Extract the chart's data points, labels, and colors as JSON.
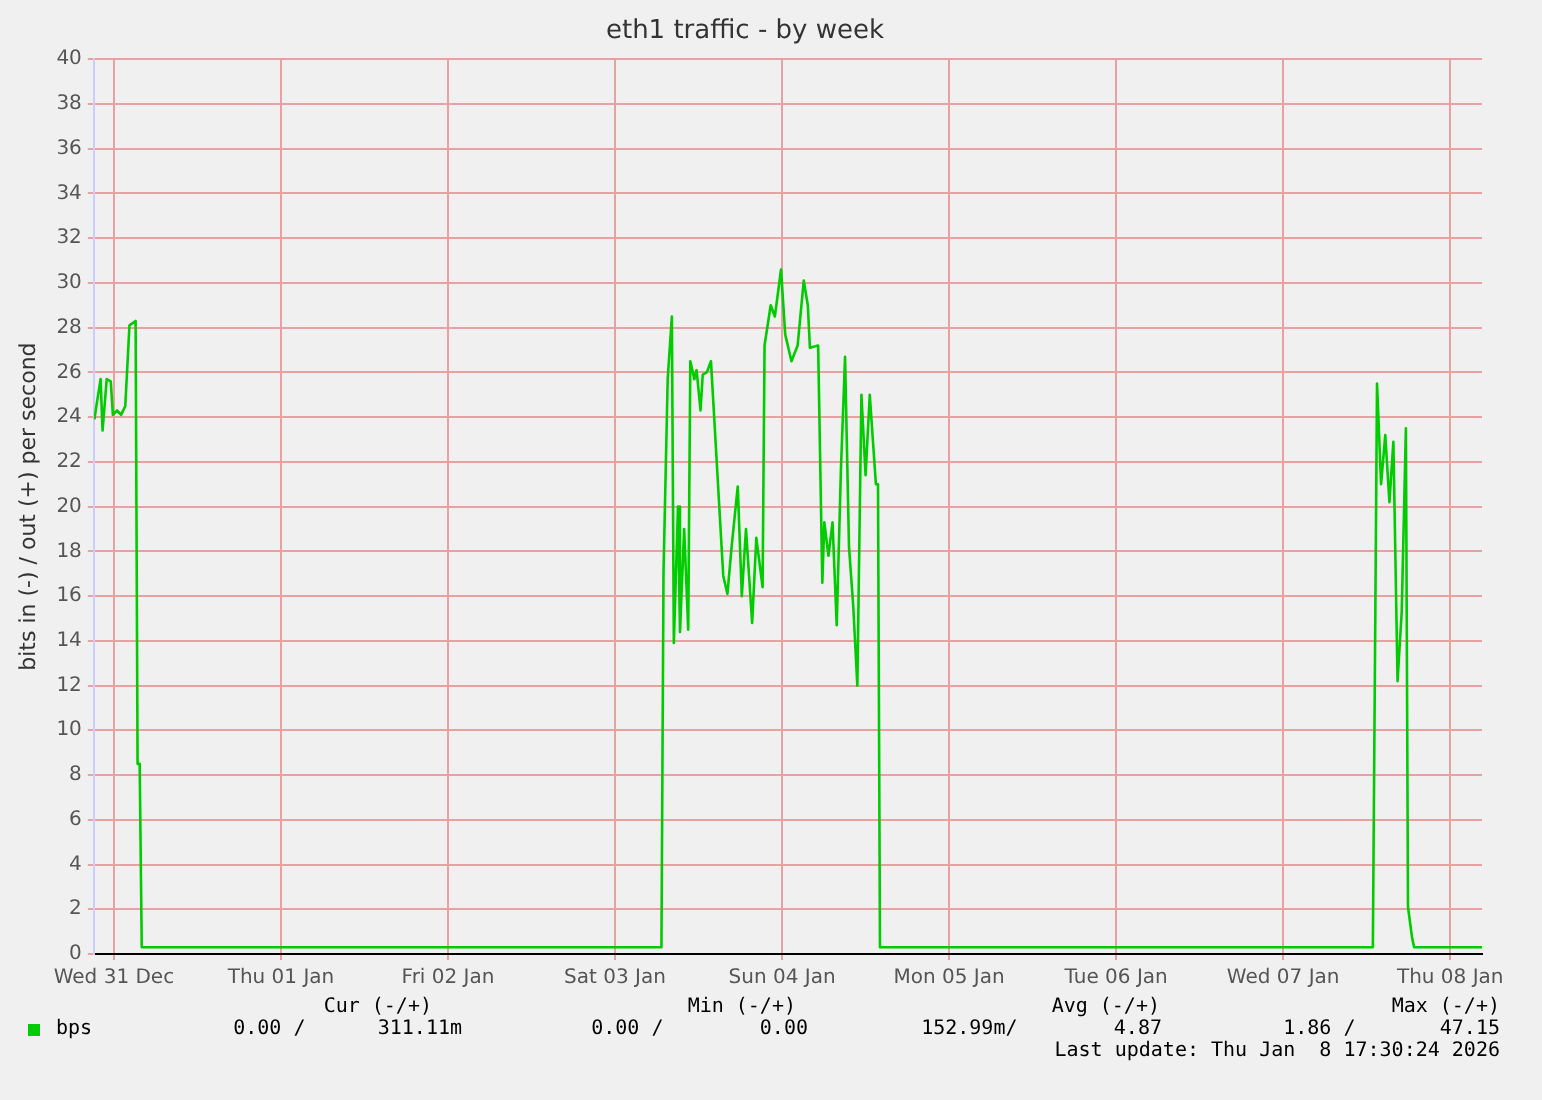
{
  "chart_data": {
    "type": "line",
    "title": "eth1 traffic - by week",
    "ylabel": "bits in (-) / out (+) per second",
    "xlim": [
      "2025-12-31T09:07",
      "2026-01-08T16:34"
    ],
    "xticks": [
      {
        "value": "2025-12-31T12:00",
        "label": "Wed 31 Dec"
      },
      {
        "value": "2026-01-01T12:00",
        "label": "Thu 01 Jan"
      },
      {
        "value": "2026-01-02T12:00",
        "label": "Fri 02 Jan"
      },
      {
        "value": "2026-01-03T12:00",
        "label": "Sat 03 Jan"
      },
      {
        "value": "2026-01-04T12:00",
        "label": "Sun 04 Jan"
      },
      {
        "value": "2026-01-05T12:00",
        "label": "Mon 05 Jan"
      },
      {
        "value": "2026-01-06T12:00",
        "label": "Tue 06 Jan"
      },
      {
        "value": "2026-01-07T12:00",
        "label": "Wed 07 Jan"
      },
      {
        "value": "2026-01-08T12:00",
        "label": "Thu 08 Jan"
      }
    ],
    "ylim": [
      0,
      40
    ],
    "yticks": [
      0,
      2,
      4,
      6,
      8,
      10,
      12,
      14,
      16,
      18,
      20,
      22,
      24,
      26,
      28,
      30,
      32,
      34,
      36,
      38,
      40
    ],
    "grid": true,
    "legend": "bottom left",
    "marker": "none",
    "line_style": "solid",
    "series": [
      {
        "name": "bps",
        "color": "#00cc00",
        "x": [
          "2025-12-31T09:12",
          "2025-12-31T09:29",
          "2025-12-31T10:05",
          "2025-12-31T10:22",
          "2025-12-31T10:58",
          "2025-12-31T11:33",
          "2025-12-31T11:51",
          "2025-12-31T12:27",
          "2025-12-31T13:02",
          "2025-12-31T13:38",
          "2025-12-31T14:14",
          "2025-12-31T15:07",
          "2025-12-31T15:24",
          "2025-12-31T15:42",
          "2025-12-31T16:00",
          "2026-01-03T18:40",
          "2026-01-03T18:58",
          "2026-01-03T19:34",
          "2026-01-03T20:10",
          "2026-01-03T20:27",
          "2026-01-03T21:03",
          "2026-01-03T21:20",
          "2026-01-03T21:56",
          "2026-01-03T22:31",
          "2026-01-03T22:49",
          "2026-01-03T23:24",
          "2026-01-03T23:43",
          "2026-01-04T00:17",
          "2026-01-04T00:36",
          "2026-01-04T01:11",
          "2026-01-04T01:47",
          "2026-01-04T03:33",
          "2026-01-04T04:09",
          "2026-01-04T04:45",
          "2026-01-04T05:38",
          "2026-01-04T06:13",
          "2026-01-04T06:49",
          "2026-01-04T07:42",
          "2026-01-04T08:18",
          "2026-01-04T09:12",
          "2026-01-04T09:29",
          "2026-01-04T10:22",
          "2026-01-04T10:58",
          "2026-01-04T11:51",
          "2026-01-04T12:27",
          "2026-01-04T13:21",
          "2026-01-04T14:14",
          "2026-01-04T15:07",
          "2026-01-04T15:42",
          "2026-01-04T16:00",
          "2026-01-04T17:11",
          "2026-01-04T17:47",
          "2026-01-04T18:04",
          "2026-01-04T18:40",
          "2026-01-04T19:15",
          "2026-01-04T19:51",
          "2026-01-04T20:27",
          "2026-01-04T21:03",
          "2026-01-04T21:37",
          "2026-01-04T22:13",
          "2026-01-04T22:49",
          "2026-01-04T23:24",
          "2026-01-05T00:00",
          "2026-01-05T00:36",
          "2026-01-05T01:29",
          "2026-01-05T01:47",
          "2026-01-05T02:04",
          "2026-01-08T00:53",
          "2026-01-08T01:29",
          "2026-01-08T02:04",
          "2026-01-08T02:40",
          "2026-01-08T03:16",
          "2026-01-08T03:50",
          "2026-01-08T04:26",
          "2026-01-08T05:02",
          "2026-01-08T05:38",
          "2026-01-08T05:56",
          "2026-01-08T06:32",
          "2026-01-08T06:49",
          "2026-01-08T16:34"
        ],
        "values": [
          23.9,
          24.5,
          25.7,
          23.4,
          25.7,
          25.6,
          24.1,
          24.3,
          24.1,
          24.5,
          28.1,
          28.3,
          8.5,
          8.5,
          0.3,
          0.3,
          17.1,
          25.7,
          28.5,
          13.9,
          20.0,
          14.4,
          19.0,
          14.5,
          26.5,
          25.7,
          26.1,
          24.3,
          25.9,
          26.0,
          26.5,
          16.9,
          16.1,
          18.2,
          20.9,
          16.0,
          19.0,
          14.8,
          18.6,
          16.4,
          27.2,
          29.0,
          28.5,
          30.6,
          27.7,
          26.5,
          27.2,
          30.1,
          29.0,
          27.1,
          27.2,
          16.6,
          19.3,
          17.8,
          19.3,
          14.7,
          21.6,
          26.7,
          18.2,
          15.6,
          12.0,
          25.0,
          21.4,
          25.0,
          21.0,
          21.0,
          0.3,
          0.3,
          25.5,
          21.0,
          23.2,
          20.2,
          22.9,
          12.2,
          15.3,
          23.5,
          2.1,
          0.7,
          0.3,
          0.3
        ]
      }
    ],
    "annotations": [
      "Cur (-/+)",
      "Min (-/+)",
      "Avg (-/+)",
      "Max (-/+)",
      "0.00 /      311.11m",
      "0.00 /        0.00",
      "152.99m/        4.87",
      "1.86 /       47.15",
      "Last update: Thu Jan  8 17:30:24 2026"
    ]
  }
}
